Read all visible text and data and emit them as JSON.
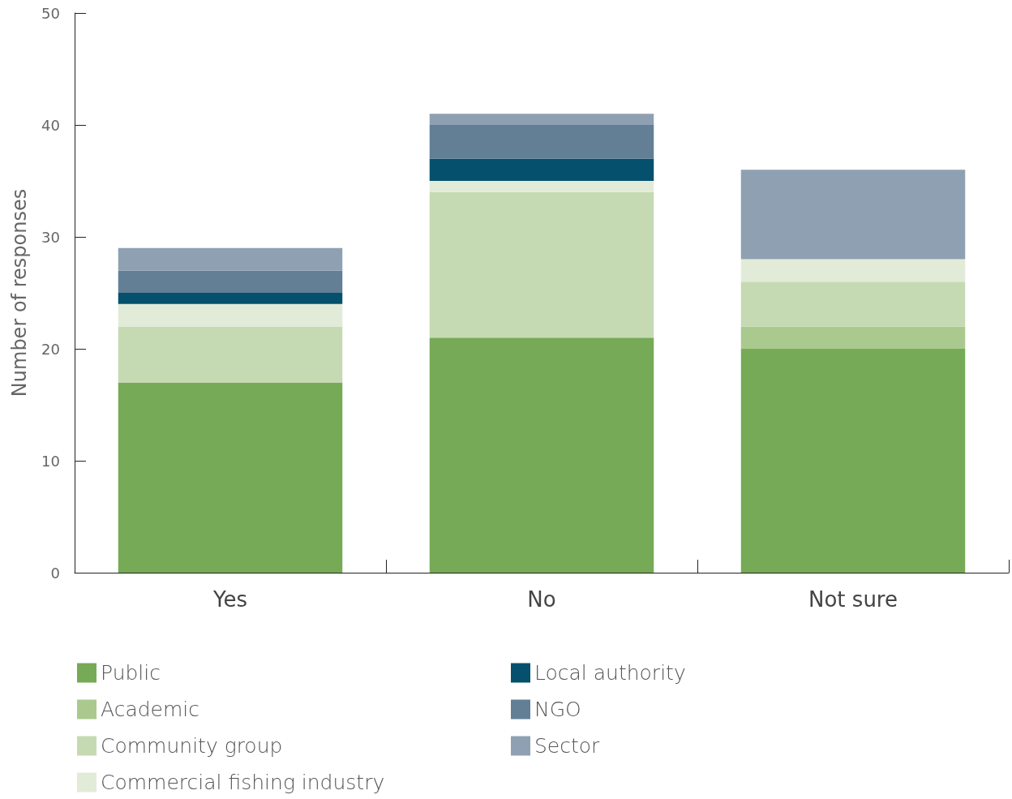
{
  "chart_data": {
    "type": "bar",
    "ylabel": "Number of responses",
    "categories": [
      "Yes",
      "No",
      "Not sure"
    ],
    "stacked": true,
    "series": [
      {
        "name": "Public",
        "color": "#76aa57",
        "values": [
          17,
          21,
          20
        ]
      },
      {
        "name": "Academic",
        "color": "#aac98f",
        "values": [
          0,
          0,
          2
        ]
      },
      {
        "name": "Community group",
        "color": "#c5dab2",
        "values": [
          5,
          13,
          4
        ]
      },
      {
        "name": "Commercial fishing industry",
        "color": "#e2ebd8",
        "values": [
          2,
          1,
          2
        ]
      },
      {
        "name": "Local authority",
        "color": "#04506d",
        "values": [
          1,
          2,
          0
        ]
      },
      {
        "name": "NGO",
        "color": "#627f95",
        "values": [
          2,
          3,
          0
        ]
      },
      {
        "name": "Sector",
        "color": "#8fa0b2",
        "values": [
          2,
          1,
          8
        ]
      }
    ],
    "ylim": [
      0,
      50
    ],
    "yticks": [
      0,
      10,
      20,
      30,
      40,
      50
    ],
    "grid": false,
    "legend": "bottom"
  }
}
